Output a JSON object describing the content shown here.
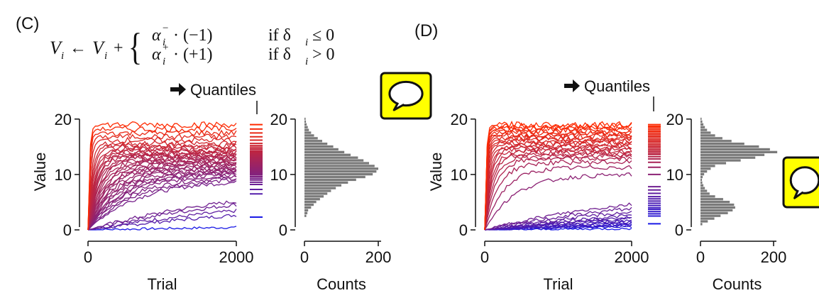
{
  "panels": [
    {
      "label": "(C)",
      "quantiles_label": "Quantiles",
      "icon": "speech-bubble-icon",
      "line_xlabel": "Trial",
      "line_ylabel": "Value",
      "hist_xlabel": "Counts",
      "equation": {
        "lhs": "V",
        "sub": "i",
        "arrow": "←",
        "alpha": "α",
        "minus": "−",
        "plus": "+",
        "row1_factor": "· (−1)",
        "row2_factor": "· (+1)",
        "row1_cond": "if δ",
        "row1_rel": "≤ 0",
        "row2_cond": "if δ",
        "row2_rel": "> 0"
      }
    },
    {
      "label": "(D)",
      "quantiles_label": "Quantiles",
      "icon": "speech-bubble-icon",
      "line_xlabel": "Trial",
      "line_ylabel": "Value",
      "hist_xlabel": "Counts"
    }
  ],
  "colors": {
    "low": "#1a1ae6",
    "high": "#ff2a00",
    "hist": "#7a7a7a",
    "icon_bg": "#ffff00"
  },
  "chart_data": [
    {
      "type": "line",
      "panel": "C",
      "xlabel": "Trial",
      "ylabel": "Value",
      "x_ticks": [
        0,
        2000
      ],
      "y_ticks": [
        0,
        10,
        20
      ],
      "xlim": [
        0,
        2000
      ],
      "ylim": [
        0,
        21
      ],
      "final_values": [
        2.3,
        6.5,
        7.3,
        8.2,
        8.6,
        9.0,
        9.3,
        9.6,
        9.9,
        10.1,
        10.3,
        10.5,
        10.7,
        10.9,
        11.1,
        11.3,
        11.5,
        11.7,
        11.9,
        12.1,
        12.3,
        12.5,
        12.7,
        12.9,
        13.1,
        13.3,
        13.5,
        13.7,
        13.9,
        14.1,
        14.3,
        14.6,
        14.9,
        15.2,
        15.6,
        16.2,
        16.8,
        17.5,
        18.2,
        19.0
      ]
    },
    {
      "type": "bar",
      "panel": "C",
      "orientation": "horizontal",
      "xlabel": "Counts",
      "x_ticks": [
        0,
        200
      ],
      "y_ticks": [
        0,
        10,
        20
      ],
      "ylim": [
        0,
        21
      ],
      "bin_values": [
        2.5,
        3.0,
        3.5,
        4.0,
        4.5,
        5.0,
        5.5,
        6.0,
        6.5,
        7.0,
        7.5,
        8.0,
        8.5,
        9.0,
        9.5,
        10.0,
        10.5,
        11.0,
        11.5,
        12.0,
        12.5,
        13.0,
        13.5,
        14.0,
        14.5,
        15.0,
        15.5,
        16.0,
        16.5,
        17.0,
        17.5,
        18.0,
        18.5,
        19.0,
        19.5,
        20.0
      ],
      "counts": [
        5,
        8,
        10,
        18,
        25,
        32,
        42,
        52,
        62,
        72,
        85,
        100,
        118,
        140,
        165,
        185,
        195,
        200,
        190,
        175,
        160,
        145,
        125,
        108,
        92,
        78,
        62,
        48,
        36,
        26,
        18,
        12,
        9,
        6,
        4,
        3
      ]
    },
    {
      "type": "line",
      "panel": "D",
      "xlabel": "Trial",
      "ylabel": "Value",
      "x_ticks": [
        0,
        2000
      ],
      "y_ticks": [
        0,
        10,
        20
      ],
      "xlim": [
        0,
        2000
      ],
      "ylim": [
        0,
        21
      ],
      "final_values": [
        1.1,
        2.5,
        2.9,
        3.3,
        3.7,
        4.0,
        4.4,
        4.8,
        5.2,
        5.6,
        6.0,
        6.6,
        7.2,
        7.8,
        10.0,
        11.3,
        12.2,
        12.8,
        13.2,
        13.6,
        13.9,
        14.2,
        14.5,
        14.8,
        15.1,
        15.4,
        15.7,
        16.0,
        16.3,
        16.6,
        16.9,
        17.2,
        17.5,
        17.8,
        18.1,
        18.4,
        18.7,
        19.0
      ]
    },
    {
      "type": "bar",
      "panel": "D",
      "orientation": "horizontal",
      "xlabel": "Counts",
      "x_ticks": [
        0,
        200
      ],
      "y_ticks": [
        0,
        10,
        20
      ],
      "ylim": [
        0,
        21
      ],
      "bin_values": [
        1.0,
        1.5,
        2.0,
        2.5,
        3.0,
        3.5,
        4.0,
        4.5,
        5.0,
        5.5,
        6.0,
        6.5,
        7.0,
        7.5,
        8.0,
        8.5,
        9.0,
        9.5,
        10.0,
        10.5,
        11.0,
        11.5,
        12.0,
        12.5,
        13.0,
        13.5,
        14.0,
        14.5,
        15.0,
        15.5,
        16.0,
        16.5,
        17.0,
        17.5,
        18.0,
        18.5,
        19.0,
        19.5,
        20.0
      ],
      "counts": [
        5,
        20,
        38,
        55,
        75,
        88,
        95,
        92,
        80,
        62,
        40,
        25,
        18,
        12,
        8,
        5,
        4,
        6,
        10,
        18,
        28,
        40,
        70,
        110,
        150,
        175,
        210,
        190,
        160,
        120,
        85,
        60,
        40,
        28,
        18,
        12,
        8,
        5,
        3
      ]
    }
  ]
}
